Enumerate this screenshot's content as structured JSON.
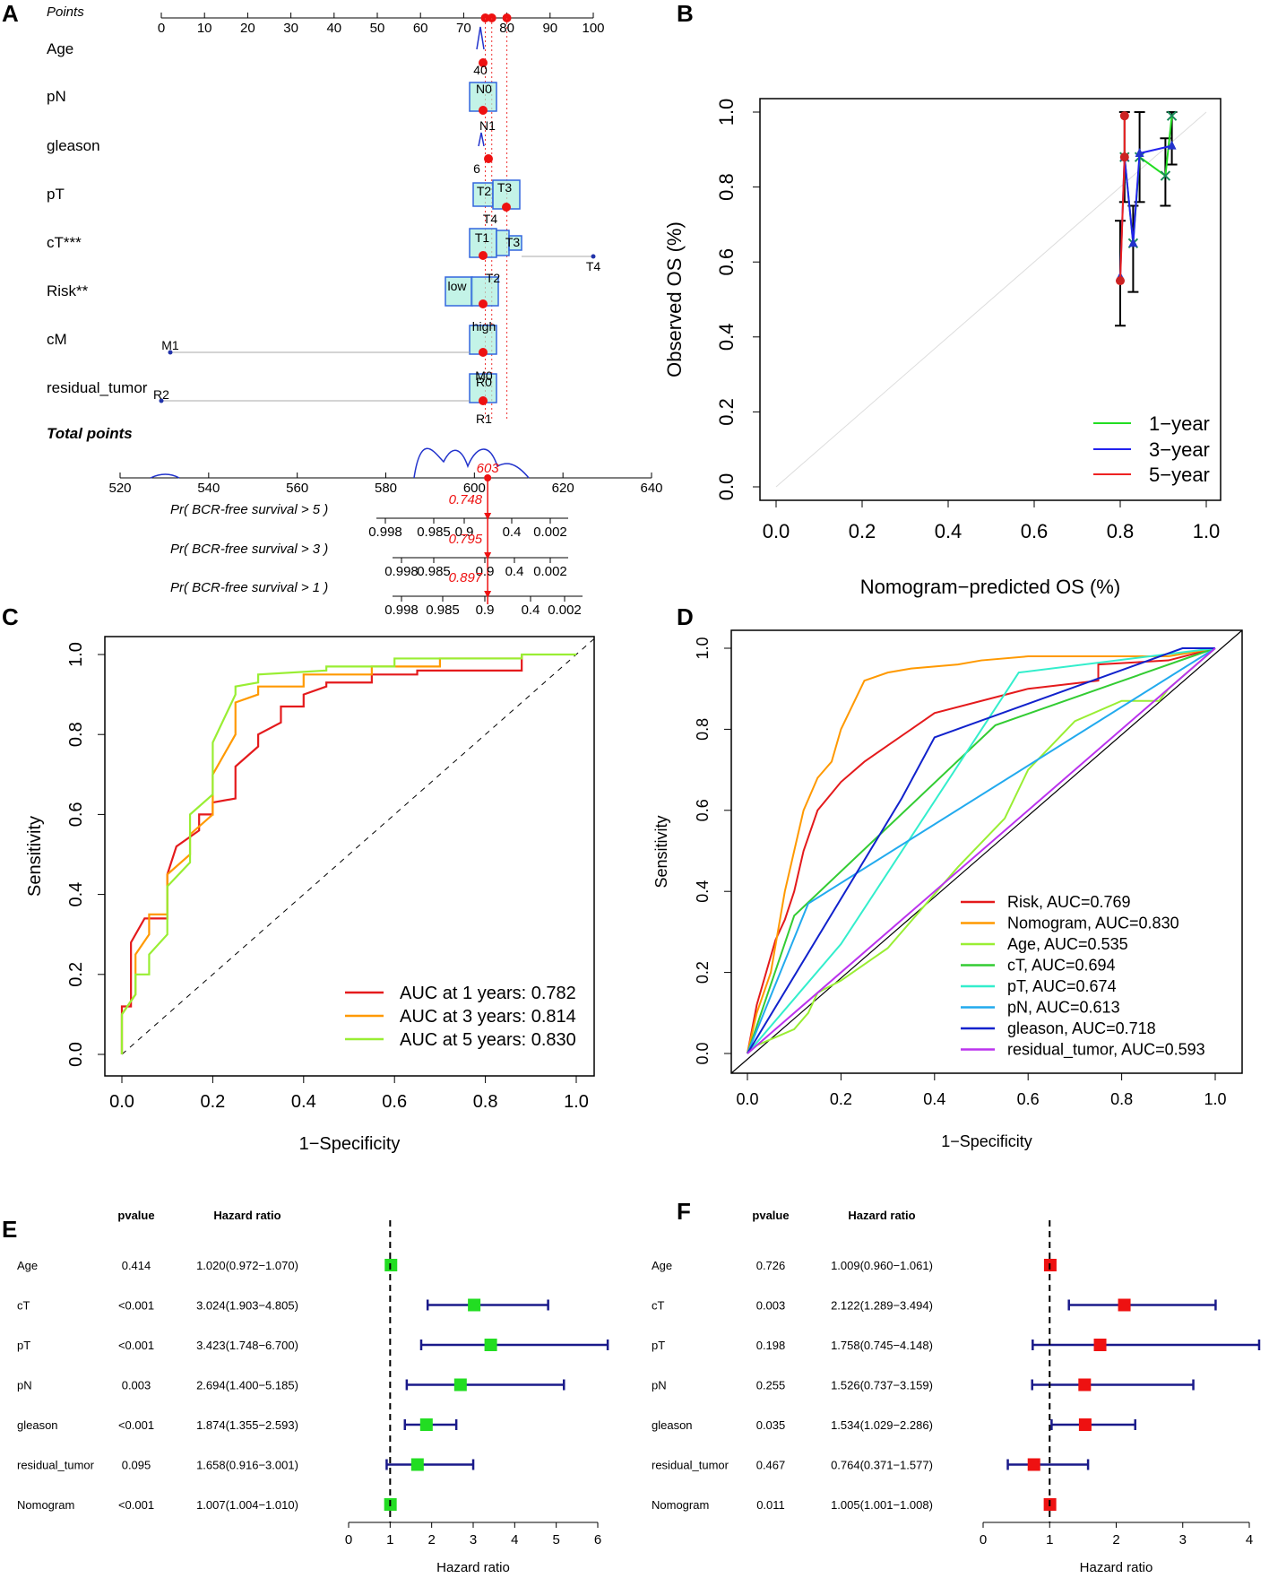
{
  "panels": {
    "a": "A",
    "b": "B",
    "c": "C",
    "d": "D",
    "e": "E",
    "f": "F"
  },
  "chart_data": [
    {
      "type": "nomogram",
      "panel": "A",
      "points_label": "Points",
      "points_ticks": [
        "0",
        "10",
        "20",
        "30",
        "40",
        "50",
        "60",
        "70",
        "80",
        "90",
        "100"
      ],
      "variables": [
        {
          "name": "Age",
          "labels": [
            "40"
          ]
        },
        {
          "name": "pN",
          "labels": [
            "N0",
            "N1"
          ]
        },
        {
          "name": "gleason",
          "labels": [
            "6"
          ]
        },
        {
          "name": "pT",
          "labels": [
            "T2",
            "T3",
            "T4"
          ]
        },
        {
          "name": "cT***",
          "labels": [
            "T1",
            "T3",
            "T2",
            "T4"
          ]
        },
        {
          "name": "Risk**",
          "labels": [
            "low",
            "high"
          ]
        },
        {
          "name": "cM",
          "labels": [
            "M1",
            "M0"
          ]
        },
        {
          "name": "residual_tumor",
          "labels": [
            "R2",
            "R0",
            "R1"
          ]
        }
      ],
      "total_points_label": "Total points",
      "total_ticks": [
        "520",
        "540",
        "560",
        "580",
        "600",
        "620",
        "640"
      ],
      "total_value": "603",
      "probabilities": [
        {
          "label": "Pr( BCR-free survival > 5 )",
          "value": "0.748",
          "ticks": [
            "0.998",
            "0.985",
            "0.9",
            "0.4",
            "0.002"
          ]
        },
        {
          "label": "Pr( BCR-free survival > 3 )",
          "value": "0.795",
          "ticks": [
            "0.998",
            "0.985",
            "0.9",
            "0.4",
            "0.002"
          ]
        },
        {
          "label": "Pr( BCR-free survival > 1 )",
          "value": "0.897",
          "ticks": [
            "0.998",
            "0.985",
            "0.9",
            "0.4",
            "0.002"
          ]
        }
      ]
    },
    {
      "type": "line",
      "panel": "B",
      "xlabel": "Nomogram−predicted OS (%)",
      "ylabel": "Observed OS (%)",
      "xlim": [
        0,
        1
      ],
      "ylim": [
        0,
        1
      ],
      "xticks": [
        "0.0",
        "0.2",
        "0.4",
        "0.6",
        "0.8",
        "1.0"
      ],
      "yticks": [
        "0.0",
        "0.2",
        "0.4",
        "0.6",
        "0.8",
        "1.0"
      ],
      "series": [
        {
          "name": "1−year",
          "color": "#22dd22",
          "x": [
            0.81,
            0.83,
            0.845,
            0.905,
            0.92
          ],
          "y": [
            0.88,
            0.65,
            0.88,
            0.83,
            0.99
          ]
        },
        {
          "name": "3−year",
          "color": "#2222ee",
          "x": [
            0.8,
            0.81,
            0.83,
            0.845,
            0.92
          ],
          "y": [
            0.56,
            0.88,
            0.65,
            0.89,
            0.91
          ]
        },
        {
          "name": "5−year",
          "color": "#ee2222",
          "x": [
            0.8,
            0.81,
            0.81
          ],
          "y": [
            0.55,
            0.88,
            0.99
          ]
        }
      ]
    },
    {
      "type": "line",
      "panel": "C",
      "xlabel": "1−Specificity",
      "ylabel": "Sensitivity",
      "xticks": [
        "0.0",
        "0.2",
        "0.4",
        "0.6",
        "0.8",
        "1.0"
      ],
      "yticks": [
        "0.0",
        "0.2",
        "0.4",
        "0.6",
        "0.8",
        "1.0"
      ],
      "series": [
        {
          "name": "AUC at 1 years: 0.782",
          "color": "#e41a1c",
          "x": [
            0,
            0,
            0.02,
            0.02,
            0.05,
            0.05,
            0.1,
            0.1,
            0.12,
            0.12,
            0.17,
            0.17,
            0.2,
            0.2,
            0.25,
            0.25,
            0.3,
            0.3,
            0.35,
            0.35,
            0.4,
            0.4,
            0.45,
            0.45,
            0.55,
            0.55,
            0.65,
            0.65,
            0.88,
            0.88
          ],
          "y": [
            0,
            0.12,
            0.12,
            0.28,
            0.34,
            0.34,
            0.34,
            0.45,
            0.52,
            0.52,
            0.56,
            0.6,
            0.6,
            0.63,
            0.64,
            0.72,
            0.77,
            0.8,
            0.83,
            0.87,
            0.87,
            0.9,
            0.92,
            0.93,
            0.93,
            0.95,
            0.95,
            0.96,
            0.96,
            1
          ]
        },
        {
          "name": "AUC at 3 years: 0.814",
          "color": "#ff9900",
          "x": [
            0,
            0,
            0.03,
            0.03,
            0.06,
            0.06,
            0.1,
            0.1,
            0.15,
            0.15,
            0.2,
            0.2,
            0.25,
            0.25,
            0.3,
            0.3,
            0.4,
            0.4,
            0.55,
            0.55,
            0.7,
            0.7,
            0.88,
            0.88
          ],
          "y": [
            0,
            0.1,
            0.15,
            0.25,
            0.3,
            0.35,
            0.35,
            0.45,
            0.5,
            0.55,
            0.6,
            0.7,
            0.8,
            0.88,
            0.9,
            0.92,
            0.92,
            0.95,
            0.95,
            0.97,
            0.97,
            0.99,
            0.99,
            1
          ]
        },
        {
          "name": "AUC at 5 years: 0.830",
          "color": "#99ee33",
          "x": [
            0,
            0,
            0.03,
            0.03,
            0.06,
            0.06,
            0.1,
            0.1,
            0.15,
            0.15,
            0.2,
            0.2,
            0.25,
            0.25,
            0.3,
            0.3,
            0.45,
            0.45,
            0.6,
            0.6,
            0.88,
            0.88,
            1
          ],
          "y": [
            0,
            0.1,
            0.15,
            0.2,
            0.2,
            0.25,
            0.3,
            0.42,
            0.48,
            0.6,
            0.65,
            0.78,
            0.9,
            0.92,
            0.93,
            0.95,
            0.96,
            0.97,
            0.97,
            0.99,
            0.99,
            1,
            1
          ]
        }
      ]
    },
    {
      "type": "line",
      "panel": "D",
      "xlabel": "1−Specificity",
      "ylabel": "Sensitivity",
      "xticks": [
        "0.0",
        "0.2",
        "0.4",
        "0.6",
        "0.8",
        "1.0"
      ],
      "yticks": [
        "0.0",
        "0.2",
        "0.4",
        "0.6",
        "0.8",
        "1.0"
      ],
      "series": [
        {
          "name": "Risk, AUC=0.769",
          "color": "#e41a1c",
          "x": [
            0,
            0.02,
            0.04,
            0.06,
            0.08,
            0.1,
            0.12,
            0.15,
            0.2,
            0.25,
            0.3,
            0.35,
            0.4,
            0.5,
            0.6,
            0.75,
            0.75,
            0.9,
            1
          ],
          "y": [
            0,
            0.12,
            0.2,
            0.28,
            0.33,
            0.4,
            0.5,
            0.6,
            0.67,
            0.72,
            0.76,
            0.8,
            0.84,
            0.87,
            0.9,
            0.92,
            0.96,
            0.97,
            1
          ]
        },
        {
          "name": "Nomogram, AUC=0.830",
          "color": "#ff9900",
          "x": [
            0,
            0.02,
            0.05,
            0.08,
            0.1,
            0.12,
            0.15,
            0.18,
            0.2,
            0.25,
            0.3,
            0.35,
            0.45,
            0.5,
            0.6,
            0.9,
            1
          ],
          "y": [
            0,
            0.1,
            0.2,
            0.4,
            0.5,
            0.6,
            0.68,
            0.72,
            0.8,
            0.92,
            0.94,
            0.95,
            0.96,
            0.97,
            0.98,
            0.98,
            1
          ]
        },
        {
          "name": "Age, AUC=0.535",
          "color": "#99ee33",
          "x": [
            0,
            0.02,
            0.06,
            0.1,
            0.13,
            0.15,
            0.2,
            0.3,
            0.45,
            0.55,
            0.6,
            0.7,
            0.8,
            0.88,
            0.9,
            1
          ],
          "y": [
            0,
            0.02,
            0.04,
            0.06,
            0.1,
            0.15,
            0.18,
            0.26,
            0.46,
            0.58,
            0.7,
            0.82,
            0.87,
            0.87,
            0.9,
            1
          ]
        },
        {
          "name": "cT, AUC=0.694",
          "color": "#33cc33",
          "x": [
            0,
            0.1,
            0.53,
            1
          ],
          "y": [
            0,
            0.34,
            0.81,
            1
          ]
        },
        {
          "name": "pT, AUC=0.674",
          "color": "#33eecc",
          "x": [
            0,
            0.2,
            0.58,
            1
          ],
          "y": [
            0,
            0.27,
            0.94,
            1
          ]
        },
        {
          "name": "pN, AUC=0.613",
          "color": "#22aaee",
          "x": [
            0,
            0.13,
            1
          ],
          "y": [
            0,
            0.37,
            1
          ]
        },
        {
          "name": "gleason, AUC=0.718",
          "color": "#1122cc",
          "x": [
            0,
            0.33,
            0.4,
            0.93,
            1
          ],
          "y": [
            0,
            0.63,
            0.78,
            1,
            1
          ]
        },
        {
          "name": "residual_tumor, AUC=0.593",
          "color": "#bb33ee",
          "x": [
            0,
            1
          ],
          "y": [
            0,
            1
          ]
        }
      ]
    },
    {
      "type": "forest",
      "panel": "E",
      "header_p": "pvalue",
      "header_hr": "Hazard ratio",
      "xlabel": "Hazard ratio",
      "xticks": [
        "0",
        "1",
        "2",
        "3",
        "4",
        "5",
        "6"
      ],
      "color": "#22dd22",
      "rows": [
        {
          "name": "Age",
          "p": "0.414",
          "hr_text": "1.020(0.972−1.070)",
          "hr": 1.02,
          "lo": 0.972,
          "hi": 1.07
        },
        {
          "name": "cT",
          "p": "<0.001",
          "hr_text": "3.024(1.903−4.805)",
          "hr": 3.024,
          "lo": 1.903,
          "hi": 4.805
        },
        {
          "name": "pT",
          "p": "<0.001",
          "hr_text": "3.423(1.748−6.700)",
          "hr": 3.423,
          "lo": 1.748,
          "hi": 6.7
        },
        {
          "name": "pN",
          "p": "0.003",
          "hr_text": "2.694(1.400−5.185)",
          "hr": 2.694,
          "lo": 1.4,
          "hi": 5.185
        },
        {
          "name": "gleason",
          "p": "<0.001",
          "hr_text": "1.874(1.355−2.593)",
          "hr": 1.874,
          "lo": 1.355,
          "hi": 2.593
        },
        {
          "name": "residual_tumor",
          "p": "0.095",
          "hr_text": "1.658(0.916−3.001)",
          "hr": 1.658,
          "lo": 0.916,
          "hi": 3.001
        },
        {
          "name": "Nomogram",
          "p": "<0.001",
          "hr_text": "1.007(1.004−1.010)",
          "hr": 1.007,
          "lo": 1.004,
          "hi": 1.01
        }
      ]
    },
    {
      "type": "forest",
      "panel": "F",
      "header_p": "pvalue",
      "header_hr": "Hazard ratio",
      "xlabel": "Hazard ratio",
      "xticks": [
        "0",
        "1",
        "2",
        "3",
        "4"
      ],
      "color": "#ee1111",
      "rows": [
        {
          "name": "Age",
          "p": "0.726",
          "hr_text": "1.009(0.960−1.061)",
          "hr": 1.009,
          "lo": 0.96,
          "hi": 1.061
        },
        {
          "name": "cT",
          "p": "0.003",
          "hr_text": "2.122(1.289−3.494)",
          "hr": 2.122,
          "lo": 1.289,
          "hi": 3.494
        },
        {
          "name": "pT",
          "p": "0.198",
          "hr_text": "1.758(0.745−4.148)",
          "hr": 1.758,
          "lo": 0.745,
          "hi": 4.148
        },
        {
          "name": "pN",
          "p": "0.255",
          "hr_text": "1.526(0.737−3.159)",
          "hr": 1.526,
          "lo": 0.737,
          "hi": 3.159
        },
        {
          "name": "gleason",
          "p": "0.035",
          "hr_text": "1.534(1.029−2.286)",
          "hr": 1.534,
          "lo": 1.029,
          "hi": 2.286
        },
        {
          "name": "residual_tumor",
          "p": "0.467",
          "hr_text": "0.764(0.371−1.577)",
          "hr": 0.764,
          "lo": 0.371,
          "hi": 1.577
        },
        {
          "name": "Nomogram",
          "p": "0.011",
          "hr_text": "1.005(1.001−1.008)",
          "hr": 1.005,
          "lo": 1.001,
          "hi": 1.008
        }
      ]
    }
  ]
}
